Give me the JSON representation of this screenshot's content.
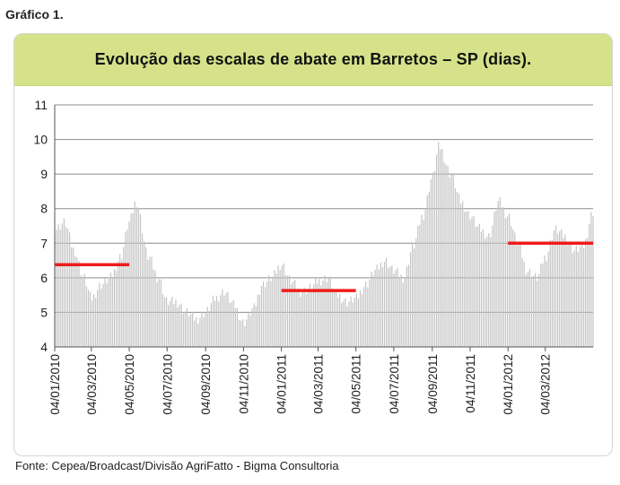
{
  "figure_label": "Gráfico 1.",
  "source": "Fonte: Cepea/Broadcast/Divisão AgriFatto - Bigma Consultoria",
  "colors": {
    "title_bg": "#d6e28a",
    "bars": "#c4c4c4",
    "average_line": "#ee1c1c",
    "grid": "#8c8c8c"
  },
  "chart_data": {
    "type": "bar",
    "title": "Evolução das escalas de abate em Barretos – SP (dias).",
    "xlabel": "",
    "ylabel": "",
    "ylim": [
      4,
      11
    ],
    "yticks": [
      "4",
      "5",
      "6",
      "7",
      "8",
      "9",
      "10",
      "11"
    ],
    "x_range": [
      "2010-01-04",
      "2012-05-20"
    ],
    "x_tick_labels": [
      "04/01/2010",
      "04/03/2010",
      "04/05/2010",
      "04/07/2010",
      "04/09/2010",
      "04/11/2010",
      "04/01/2011",
      "04/03/2011",
      "04/05/2011",
      "04/07/2011",
      "04/09/2011",
      "04/11/2011",
      "04/01/2012",
      "04/03/2012"
    ],
    "x_tick_dates": [
      "2010-01-04",
      "2010-03-04",
      "2010-05-04",
      "2010-07-04",
      "2010-09-04",
      "2010-11-04",
      "2011-01-04",
      "2011-03-04",
      "2011-05-04",
      "2011-07-04",
      "2011-09-04",
      "2011-11-04",
      "2012-01-04",
      "2012-03-04"
    ],
    "grid": true,
    "series": [
      {
        "type": "bar",
        "points": [
          [
            "2010-01-04",
            7.4
          ],
          [
            "2010-01-20",
            7.6
          ],
          [
            "2010-02-04",
            6.8
          ],
          [
            "2010-02-20",
            6.0
          ],
          [
            "2010-03-04",
            5.4
          ],
          [
            "2010-03-20",
            5.8
          ],
          [
            "2010-04-04",
            6.0
          ],
          [
            "2010-04-20",
            6.6
          ],
          [
            "2010-05-04",
            7.6
          ],
          [
            "2010-05-15",
            8.2
          ],
          [
            "2010-06-04",
            6.6
          ],
          [
            "2010-06-20",
            6.0
          ],
          [
            "2010-07-04",
            5.3
          ],
          [
            "2010-07-20",
            5.3
          ],
          [
            "2010-08-04",
            5.0
          ],
          [
            "2010-08-20",
            4.8
          ],
          [
            "2010-09-04",
            5.0
          ],
          [
            "2010-09-20",
            5.4
          ],
          [
            "2010-10-04",
            5.6
          ],
          [
            "2010-10-20",
            5.2
          ],
          [
            "2010-11-04",
            4.7
          ],
          [
            "2010-11-20",
            5.1
          ],
          [
            "2010-12-04",
            5.8
          ],
          [
            "2010-12-20",
            6.0
          ],
          [
            "2011-01-04",
            6.4
          ],
          [
            "2011-01-20",
            5.9
          ],
          [
            "2011-02-04",
            5.6
          ],
          [
            "2011-02-20",
            5.7
          ],
          [
            "2011-03-04",
            5.9
          ],
          [
            "2011-03-20",
            6.0
          ],
          [
            "2011-04-04",
            5.5
          ],
          [
            "2011-04-20",
            5.3
          ],
          [
            "2011-05-04",
            5.4
          ],
          [
            "2011-05-20",
            5.8
          ],
          [
            "2011-06-04",
            6.2
          ],
          [
            "2011-06-20",
            6.5
          ],
          [
            "2011-07-04",
            6.2
          ],
          [
            "2011-07-20",
            6.0
          ],
          [
            "2011-08-04",
            6.9
          ],
          [
            "2011-08-20",
            7.8
          ],
          [
            "2011-09-04",
            8.9
          ],
          [
            "2011-09-15",
            9.8
          ],
          [
            "2011-10-04",
            9.0
          ],
          [
            "2011-10-20",
            8.2
          ],
          [
            "2011-11-04",
            7.8
          ],
          [
            "2011-11-20",
            7.4
          ],
          [
            "2011-12-04",
            7.2
          ],
          [
            "2011-12-20",
            8.2
          ],
          [
            "2012-01-04",
            7.8
          ],
          [
            "2012-01-20",
            7.0
          ],
          [
            "2012-02-04",
            6.2
          ],
          [
            "2012-02-20",
            6.0
          ],
          [
            "2012-03-04",
            6.6
          ],
          [
            "2012-03-20",
            7.4
          ],
          [
            "2012-04-04",
            7.2
          ],
          [
            "2012-04-20",
            6.8
          ],
          [
            "2012-05-04",
            6.9
          ],
          [
            "2012-05-20",
            7.9
          ]
        ]
      },
      {
        "type": "step",
        "segments": [
          {
            "from": "2010-01-04",
            "to": "2010-05-04",
            "value": 6.38
          },
          {
            "from": "2011-01-04",
            "to": "2011-05-04",
            "value": 5.63
          },
          {
            "from": "2012-01-04",
            "to": "2012-05-20",
            "value": 7.0
          }
        ]
      }
    ]
  }
}
